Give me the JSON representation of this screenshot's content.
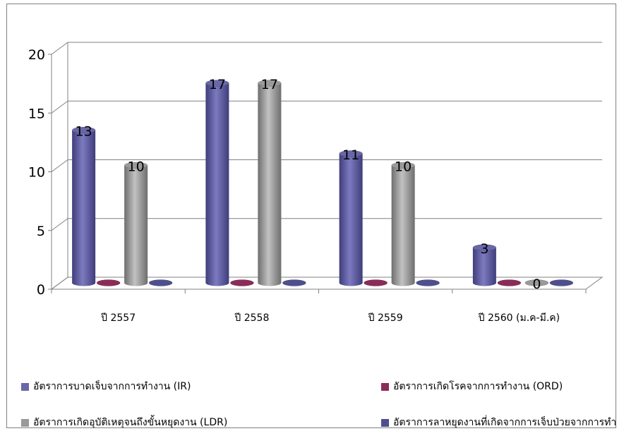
{
  "chart_data": {
    "type": "bar",
    "categories": [
      "ปี 2557",
      "ปี 2558",
      "ปี 2559",
      "ปี 2560 (ม.ค-มี.ค)"
    ],
    "series": [
      {
        "name": "อัตราการบาดเจ็บจากการทำงาน (IR)",
        "values": [
          13,
          17,
          11,
          3
        ],
        "color": "#6a67a8"
      },
      {
        "name": "อัตราการเกิดโรคจากการทำงาน (ORD)",
        "values": [
          0,
          0,
          0,
          0
        ],
        "color": "#8b2c58"
      },
      {
        "name": "อัตราการเกิดอุบัติเหตุจนถึงขั้นหยุดงาน (LDR)",
        "values": [
          10,
          17,
          10,
          0
        ],
        "color": "#9a9a9a"
      },
      {
        "name": "อัตราการลาหยุดงานที่เกิดจากการเจ็บป่วยจากการทำงาน",
        "values": [
          0,
          0,
          0,
          0
        ],
        "color": "#4f4f8f"
      }
    ],
    "labeled_series": [
      0,
      2
    ],
    "yticks": [
      "0",
      "5",
      "10",
      "15",
      "20"
    ],
    "ylim": [
      0,
      20
    ],
    "grid": true,
    "legend_position": "bottom",
    "title": "",
    "xlabel": "",
    "ylabel": ""
  }
}
